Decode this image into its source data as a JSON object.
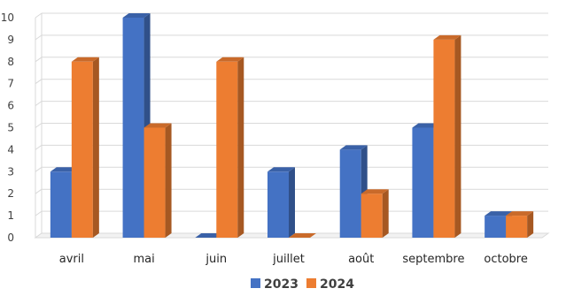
{
  "chart_data": {
    "type": "bar",
    "categories": [
      "avril",
      "mai",
      "juin",
      "juillet",
      "août",
      "septembre",
      "octobre"
    ],
    "series": [
      {
        "name": "2023",
        "values": [
          3,
          10,
          0,
          3,
          4,
          5,
          1
        ],
        "color": "#4472C4"
      },
      {
        "name": "2024",
        "values": [
          8,
          5,
          8,
          0,
          2,
          9,
          1
        ],
        "color": "#ED7D31"
      }
    ],
    "ylim": [
      0,
      10
    ],
    "yticks": [
      0,
      1,
      2,
      3,
      4,
      5,
      6,
      7,
      8,
      9,
      10
    ],
    "grid": true,
    "legend": "bottom-center",
    "style": "3d-columns"
  }
}
